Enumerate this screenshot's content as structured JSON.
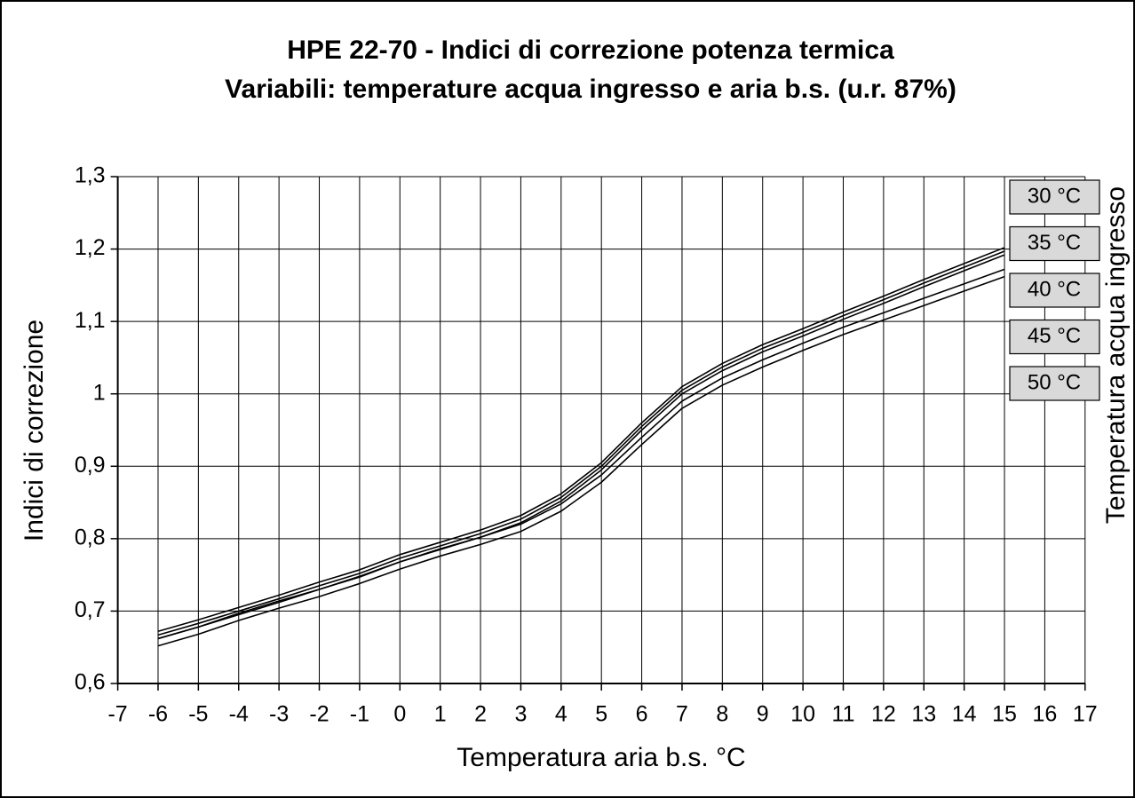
{
  "chart_data": {
    "type": "line",
    "title": "HPE 22-70 -  Indici di correzione potenza termica",
    "subtitle": "Variabili: temperature acqua ingresso e aria b.s. (u.r. 87%)",
    "x_label": "Temperatura aria b.s. °C",
    "y_label": "Indici di correzione",
    "legend_title": "Temperatura acqua ingresso",
    "x": [
      -6,
      -5,
      -4,
      -3,
      -2,
      -1,
      0,
      1,
      2,
      3,
      4,
      5,
      6,
      7,
      8,
      9,
      10,
      11,
      12,
      13,
      14,
      15
    ],
    "series": [
      {
        "name": "30 °C",
        "color": "#000000",
        "values": [
          0.672,
          0.688,
          0.705,
          0.722,
          0.74,
          0.757,
          0.778,
          0.795,
          0.812,
          0.832,
          0.862,
          0.905,
          0.96,
          1.01,
          1.042,
          1.068,
          1.09,
          1.113,
          1.135,
          1.158,
          1.18,
          1.202
        ]
      },
      {
        "name": "35 °C",
        "color": "#000000",
        "values": [
          0.667,
          0.683,
          0.7,
          0.717,
          0.735,
          0.752,
          0.773,
          0.79,
          0.807,
          0.827,
          0.857,
          0.9,
          0.955,
          1.005,
          1.037,
          1.063,
          1.085,
          1.108,
          1.13,
          1.153,
          1.175,
          1.197
        ]
      },
      {
        "name": "40 °C",
        "color": "#000000",
        "values": [
          0.662,
          0.678,
          0.695,
          0.712,
          0.73,
          0.747,
          0.768,
          0.785,
          0.802,
          0.822,
          0.852,
          0.895,
          0.95,
          1.0,
          1.032,
          1.058,
          1.08,
          1.103,
          1.125,
          1.148,
          1.17,
          1.192
        ]
      },
      {
        "name": "45 °C",
        "color": "#000000",
        "values": [
          0.662,
          0.678,
          0.697,
          0.714,
          0.73,
          0.748,
          0.768,
          0.786,
          0.802,
          0.82,
          0.848,
          0.888,
          0.94,
          0.99,
          1.022,
          1.047,
          1.07,
          1.092,
          1.112,
          1.132,
          1.152,
          1.172
        ]
      },
      {
        "name": "50 °C",
        "color": "#000000",
        "values": [
          0.652,
          0.668,
          0.687,
          0.704,
          0.72,
          0.738,
          0.758,
          0.776,
          0.792,
          0.81,
          0.838,
          0.878,
          0.93,
          0.98,
          1.012,
          1.037,
          1.06,
          1.082,
          1.102,
          1.122,
          1.142,
          1.162
        ]
      }
    ],
    "xlim": [
      -7,
      17
    ],
    "xticks": [
      -7,
      -6,
      -5,
      -4,
      -3,
      -2,
      -1,
      0,
      1,
      2,
      3,
      4,
      5,
      6,
      7,
      8,
      9,
      10,
      11,
      12,
      13,
      14,
      15,
      16,
      17
    ],
    "ylim": [
      0.6,
      1.3
    ],
    "yticks": [
      {
        "value": 0.6,
        "label": "0,6"
      },
      {
        "value": 0.7,
        "label": "0,7"
      },
      {
        "value": 0.8,
        "label": "0,8"
      },
      {
        "value": 0.9,
        "label": "0,9"
      },
      1,
      {
        "value": 1.1,
        "label": "1,1"
      },
      {
        "value": 1.2,
        "label": "1,2"
      },
      {
        "value": 1.3,
        "label": "1,3"
      }
    ],
    "grid": true
  }
}
